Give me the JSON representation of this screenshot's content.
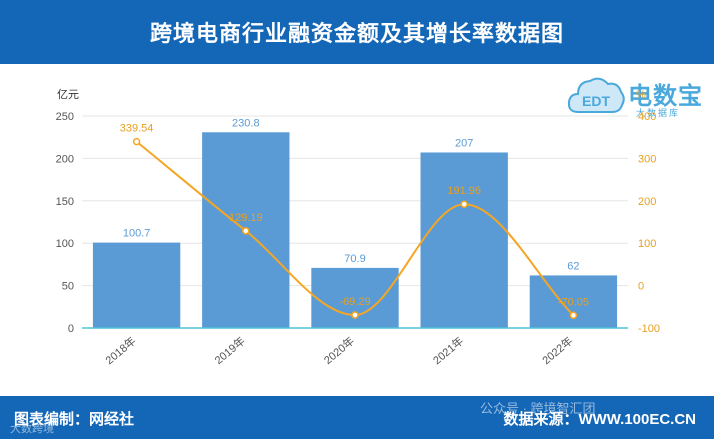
{
  "header": {
    "title": "跨境电商行业融资金额及其增长率数据图"
  },
  "logo": {
    "brand": "电数宝",
    "badge": "EDT",
    "tagline": "大数据库"
  },
  "footer": {
    "left": "图表编制：网经社",
    "right": "数据来源：WWW.100EC.CN"
  },
  "watermarks": {
    "bottom_left": "大数跨境",
    "bottom_right": "公众号 · 跨境智汇团"
  },
  "colors": {
    "header_bg": "#1466b6",
    "bar": "#5b9bd5",
    "line": "#f5a623",
    "bar_label": "#5b9bd5",
    "line_label": "#e8a020"
  },
  "chart_data": {
    "type": "bar",
    "categories": [
      "2018年",
      "2019年",
      "2020年",
      "2021年",
      "2022年"
    ],
    "series": [
      {
        "name": "",
        "type": "bar",
        "axis": "left",
        "values": [
          100.7,
          230.8,
          70.9,
          207,
          62
        ]
      },
      {
        "name": "",
        "type": "line",
        "axis": "right",
        "smooth": true,
        "values": [
          339.54,
          129.19,
          -69.29,
          191.96,
          -70.05
        ]
      }
    ],
    "y_left": {
      "label": "亿元",
      "min": 0,
      "max": 250,
      "ticks": [
        0,
        50,
        100,
        150,
        200,
        250
      ]
    },
    "y_right": {
      "label": "%",
      "min": -100,
      "max": 400,
      "ticks": [
        -100,
        0,
        100,
        200,
        300,
        400
      ]
    },
    "grid": true
  }
}
